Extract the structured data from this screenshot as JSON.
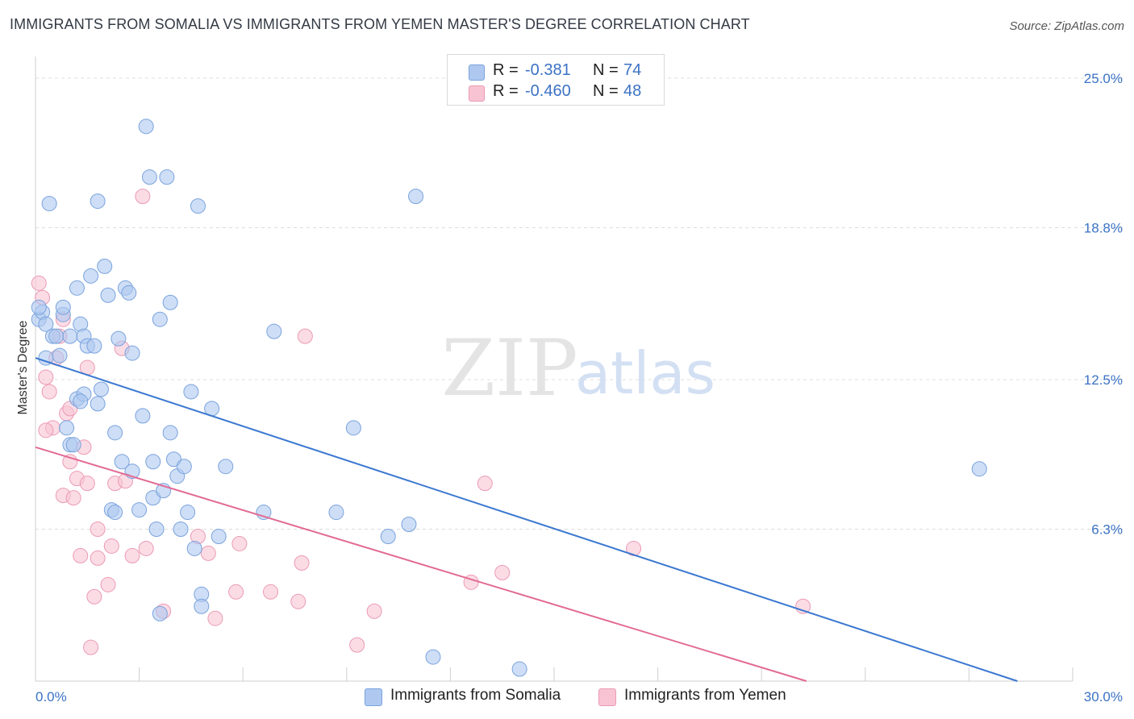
{
  "title": "IMMIGRANTS FROM SOMALIA VS IMMIGRANTS FROM YEMEN MASTER'S DEGREE CORRELATION CHART",
  "source": "Source: ZipAtlas.com",
  "watermark": {
    "zip": "ZIP",
    "atlas": "atlas"
  },
  "legend": {
    "rows": [
      {
        "r_label": "R =",
        "r_value": "-0.381",
        "n_label": "N =",
        "n_value": "74"
      },
      {
        "r_label": "R =",
        "r_value": "-0.460",
        "n_label": "N =",
        "n_value": "48"
      }
    ]
  },
  "bottom_legend": [
    "Immigrants from Somalia",
    "Immigrants from Yemen"
  ],
  "colors": {
    "somalia_fill": "#aec8f0",
    "somalia_stroke": "#7aa3dd",
    "somalia_line": "#3b78d0",
    "yemen_fill": "#f8c4d4",
    "yemen_stroke": "#eb9ab5",
    "yemen_line": "#e26b95",
    "tick_text": "#3b72c4",
    "grid": "#dcdcdc"
  },
  "chart_data": {
    "type": "scatter",
    "title": "IMMIGRANTS FROM SOMALIA VS IMMIGRANTS FROM YEMEN MASTER'S DEGREE CORRELATION CHART",
    "xlabel": "",
    "ylabel": "Master's Degree",
    "xlim": [
      0,
      30
    ],
    "ylim": [
      0,
      25
    ],
    "x_tick_labels": [
      "0.0%",
      "30.0%"
    ],
    "y_ticks": [
      6.3,
      12.5,
      18.8,
      25.0
    ],
    "y_tick_labels": [
      "6.3%",
      "12.5%",
      "18.8%",
      "25.0%"
    ],
    "series": [
      {
        "name": "Immigrants from Somalia",
        "r": -0.381,
        "n": 74,
        "trend": {
          "x0": 0.0,
          "y0": 13.4,
          "x1": 28.4,
          "y1": 0.0
        },
        "points": [
          [
            0.1,
            15.0
          ],
          [
            0.2,
            15.3
          ],
          [
            0.3,
            14.8
          ],
          [
            0.4,
            19.8
          ],
          [
            0.5,
            14.3
          ],
          [
            0.6,
            14.3
          ],
          [
            0.7,
            13.5
          ],
          [
            0.8,
            15.2
          ],
          [
            0.8,
            15.5
          ],
          [
            0.9,
            10.5
          ],
          [
            1.0,
            14.3
          ],
          [
            1.0,
            9.8
          ],
          [
            1.1,
            9.8
          ],
          [
            1.2,
            11.7
          ],
          [
            1.2,
            16.3
          ],
          [
            1.3,
            14.8
          ],
          [
            1.4,
            11.9
          ],
          [
            1.4,
            14.3
          ],
          [
            1.5,
            13.9
          ],
          [
            1.6,
            16.8
          ],
          [
            1.7,
            13.9
          ],
          [
            1.8,
            11.5
          ],
          [
            1.8,
            19.9
          ],
          [
            1.9,
            12.1
          ],
          [
            2.0,
            17.2
          ],
          [
            2.1,
            16.0
          ],
          [
            2.2,
            7.1
          ],
          [
            2.3,
            10.3
          ],
          [
            2.3,
            7.0
          ],
          [
            2.4,
            14.2
          ],
          [
            2.5,
            9.1
          ],
          [
            2.6,
            16.3
          ],
          [
            2.7,
            16.1
          ],
          [
            2.8,
            8.7
          ],
          [
            2.8,
            13.6
          ],
          [
            3.0,
            7.1
          ],
          [
            3.1,
            11.0
          ],
          [
            3.2,
            23.0
          ],
          [
            3.3,
            20.9
          ],
          [
            3.4,
            7.6
          ],
          [
            3.4,
            9.1
          ],
          [
            3.5,
            6.3
          ],
          [
            3.6,
            15.0
          ],
          [
            3.7,
            7.9
          ],
          [
            3.8,
            20.9
          ],
          [
            3.9,
            10.3
          ],
          [
            3.9,
            15.7
          ],
          [
            4.0,
            9.2
          ],
          [
            4.1,
            8.5
          ],
          [
            4.2,
            6.3
          ],
          [
            4.3,
            8.9
          ],
          [
            4.4,
            7.0
          ],
          [
            4.5,
            12.0
          ],
          [
            4.6,
            5.5
          ],
          [
            4.7,
            19.7
          ],
          [
            4.8,
            3.6
          ],
          [
            4.8,
            3.1
          ],
          [
            5.1,
            11.3
          ],
          [
            5.3,
            6.0
          ],
          [
            5.5,
            8.9
          ],
          [
            6.6,
            7.0
          ],
          [
            6.9,
            14.5
          ],
          [
            8.7,
            7.0
          ],
          [
            9.2,
            10.5
          ],
          [
            10.2,
            6.0
          ],
          [
            10.8,
            6.5
          ],
          [
            11.0,
            20.1
          ],
          [
            11.5,
            1.0
          ],
          [
            14.0,
            0.5
          ],
          [
            27.3,
            8.8
          ],
          [
            3.6,
            2.8
          ],
          [
            0.1,
            15.5
          ],
          [
            1.3,
            11.6
          ],
          [
            0.3,
            13.4
          ]
        ]
      },
      {
        "name": "Immigrants from Yemen",
        "r": -0.46,
        "n": 48,
        "trend": {
          "x0": 0.0,
          "y0": 9.7,
          "x1": 22.3,
          "y1": 0.0
        },
        "points": [
          [
            0.1,
            16.5
          ],
          [
            0.2,
            15.9
          ],
          [
            0.3,
            12.6
          ],
          [
            0.4,
            12.0
          ],
          [
            0.5,
            10.5
          ],
          [
            0.6,
            13.4
          ],
          [
            0.7,
            14.3
          ],
          [
            0.8,
            7.7
          ],
          [
            0.8,
            15.0
          ],
          [
            0.9,
            11.1
          ],
          [
            1.0,
            11.3
          ],
          [
            1.0,
            9.1
          ],
          [
            1.1,
            7.6
          ],
          [
            1.2,
            8.4
          ],
          [
            1.3,
            5.2
          ],
          [
            1.4,
            9.7
          ],
          [
            1.5,
            8.2
          ],
          [
            1.5,
            13.0
          ],
          [
            1.6,
            1.4
          ],
          [
            1.7,
            3.5
          ],
          [
            1.8,
            5.1
          ],
          [
            1.8,
            6.3
          ],
          [
            2.1,
            4.0
          ],
          [
            2.2,
            5.6
          ],
          [
            2.3,
            8.2
          ],
          [
            2.5,
            13.8
          ],
          [
            2.8,
            5.2
          ],
          [
            3.1,
            20.1
          ],
          [
            3.2,
            5.5
          ],
          [
            3.7,
            2.9
          ],
          [
            4.7,
            6.0
          ],
          [
            5.0,
            5.3
          ],
          [
            5.2,
            2.6
          ],
          [
            5.8,
            3.7
          ],
          [
            5.9,
            5.7
          ],
          [
            6.8,
            3.7
          ],
          [
            7.6,
            3.3
          ],
          [
            7.7,
            4.9
          ],
          [
            7.8,
            14.3
          ],
          [
            9.3,
            1.5
          ],
          [
            9.8,
            2.9
          ],
          [
            12.6,
            4.1
          ],
          [
            13.0,
            8.2
          ],
          [
            13.5,
            4.5
          ],
          [
            17.3,
            5.5
          ],
          [
            22.2,
            3.1
          ],
          [
            0.3,
            10.4
          ],
          [
            2.6,
            8.3
          ]
        ]
      }
    ]
  }
}
